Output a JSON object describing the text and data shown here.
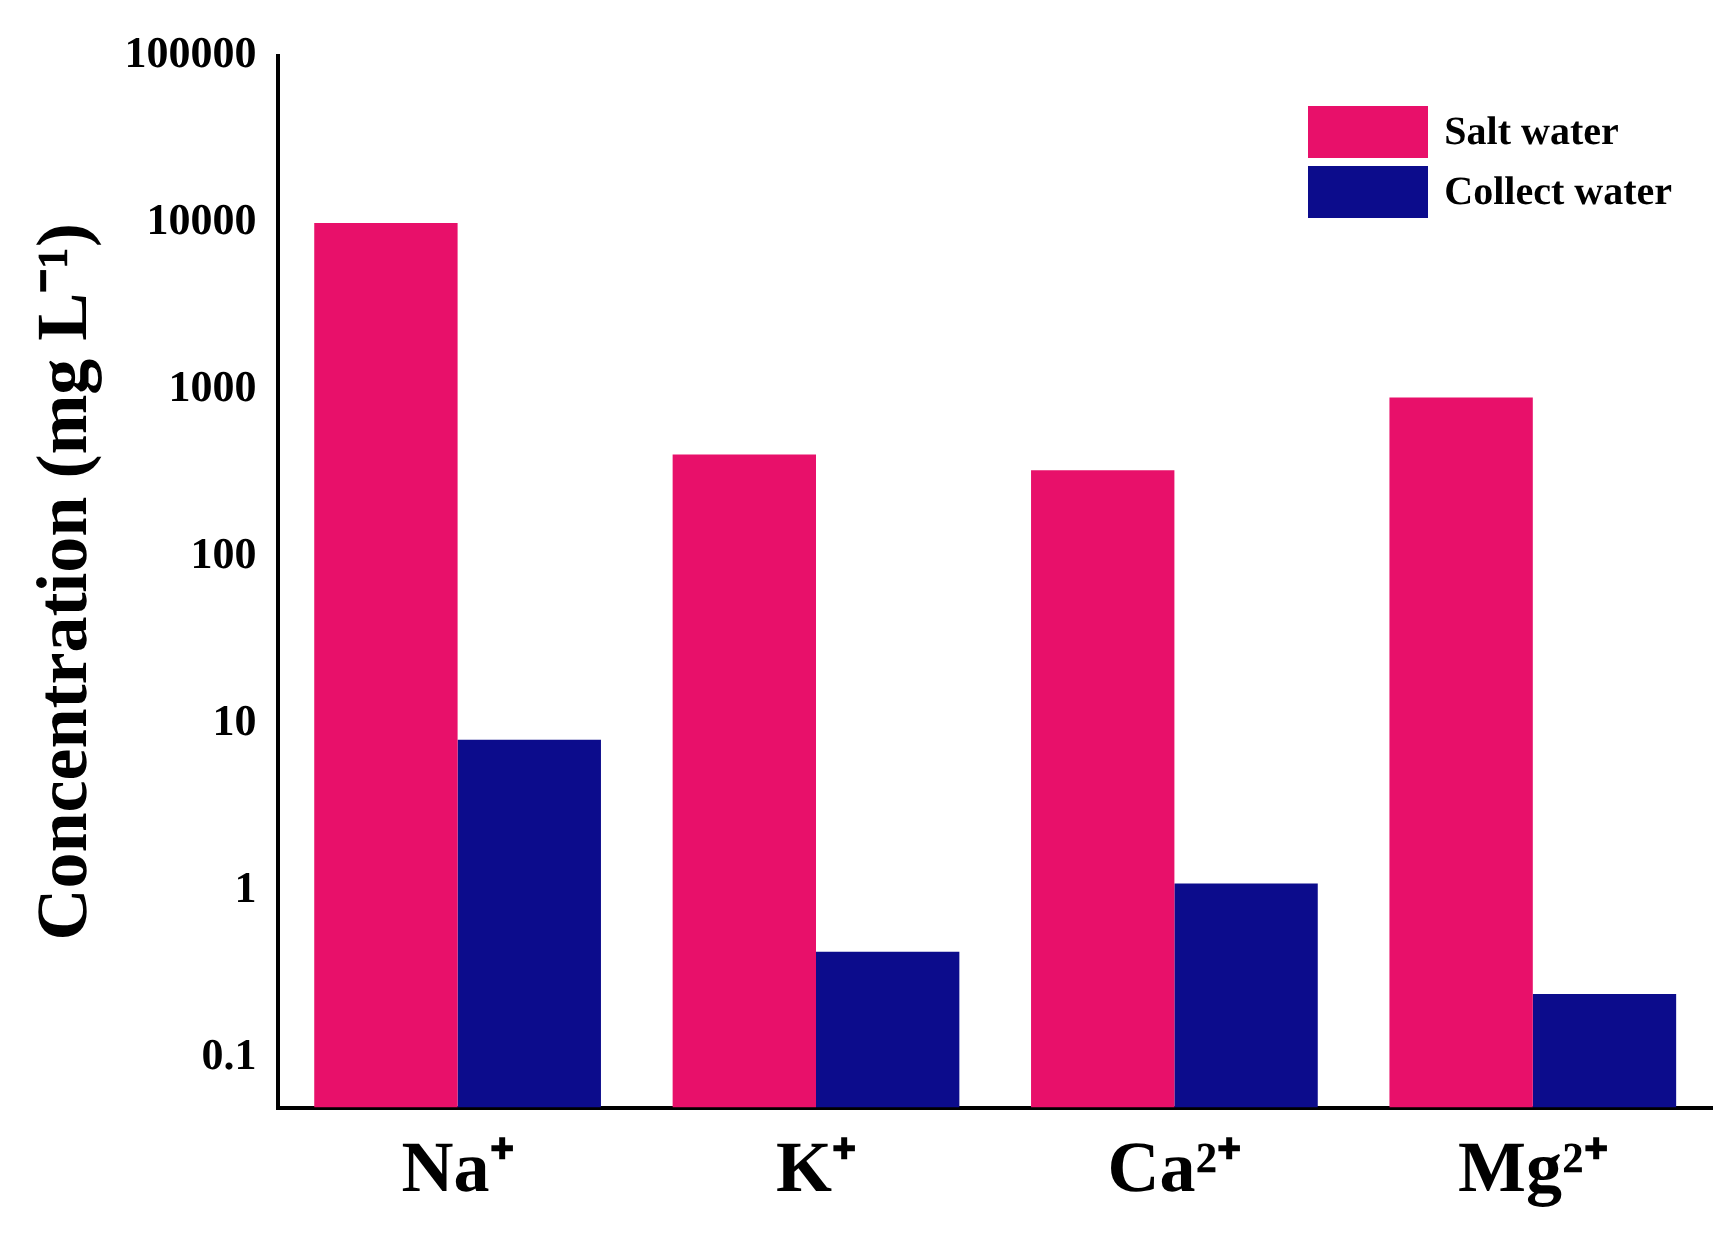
{
  "chart_data": {
    "type": "bar",
    "ylabel": "Concentration (mg L⁻¹)",
    "categories": [
      "Na⁺",
      "K⁺",
      "Ca²⁺",
      "Mg²⁺"
    ],
    "series": [
      {
        "name": "Salt water",
        "color": "#e8106a",
        "values": [
          10000,
          410,
          330,
          900
        ]
      },
      {
        "name": "Collect water",
        "color": "#0c0c8c",
        "values": [
          8,
          0.43,
          1.1,
          0.24
        ]
      }
    ],
    "log": true,
    "ylim": [
      0.05,
      100000
    ],
    "yticks": [
      0.1,
      1,
      10,
      100,
      1000,
      10000,
      100000
    ],
    "grid": false,
    "legend": "top right"
  }
}
